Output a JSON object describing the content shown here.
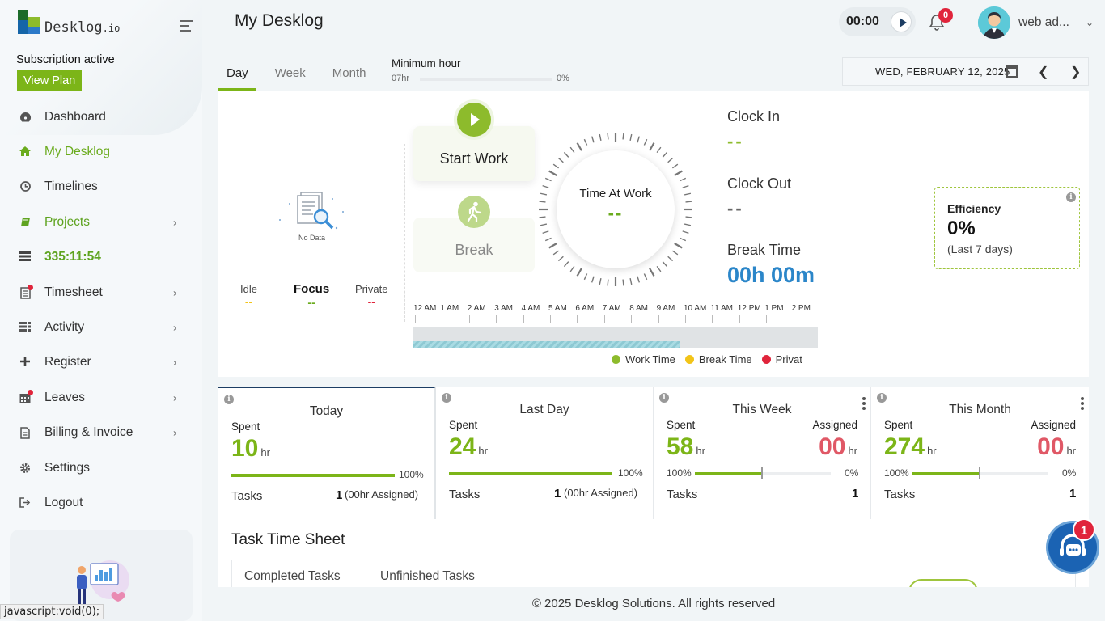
{
  "sidebar": {
    "logo_text": "Desklog",
    "logo_suffix": ".io",
    "subscription_text": "Subscription active",
    "view_plan_label": "View Plan",
    "items": [
      {
        "label": "Dashboard",
        "icon": "dashboard-icon"
      },
      {
        "label": "My Desklog",
        "icon": "home-icon"
      },
      {
        "label": "Timelines",
        "icon": "clock-icon"
      },
      {
        "label": "Projects",
        "icon": "book-icon"
      },
      {
        "label": "335:11:54",
        "icon": "timer-icon"
      },
      {
        "label": "Timesheet",
        "icon": "timesheet-icon"
      },
      {
        "label": "Activity",
        "icon": "grid-icon"
      },
      {
        "label": "Register",
        "icon": "plus-icon"
      },
      {
        "label": "Leaves",
        "icon": "calendar-icon"
      },
      {
        "label": "Billing & Invoice",
        "icon": "invoice-icon"
      },
      {
        "label": "Settings",
        "icon": "gear-icon"
      },
      {
        "label": "Logout",
        "icon": "logout-icon"
      }
    ]
  },
  "statusbar": "javascript:void(0);",
  "header": {
    "title": "My Desklog",
    "timer": "00:00",
    "notification_count": "0",
    "user_name": "web ad..."
  },
  "tabs": {
    "day": "Day",
    "week": "Week",
    "month": "Month",
    "min_hour_label": "Minimum hour",
    "min_hour_value": "07hr",
    "min_hour_pct": "0%"
  },
  "date": "WED, FEBRUARY 12, 2025",
  "panel": {
    "no_data": "No Data",
    "idle": "Idle",
    "idle_val": "--",
    "focus": "Focus",
    "focus_val": "--",
    "private": "Private",
    "private_val": "--",
    "start_work": "Start Work",
    "break": "Break",
    "time_at_work": "Time At Work",
    "time_at_work_val": "--",
    "clock_in": "Clock In",
    "clock_in_val": "--",
    "clock_out": "Clock Out",
    "clock_out_val": "--",
    "break_time": "Break Time",
    "break_time_val": "00h 00m",
    "efficiency_title": "Efficiency",
    "efficiency_val": "0%",
    "efficiency_note": "(Last 7 days)",
    "timeline_hours": [
      "12 AM",
      "1 AM",
      "2 AM",
      "3 AM",
      "4 AM",
      "5 AM",
      "6 AM",
      "7 AM",
      "8 AM",
      "9 AM",
      "10 AM",
      "11 AM",
      "12 PM",
      "1 PM",
      "2 PM"
    ],
    "legend": [
      {
        "label": "Work Time",
        "color": "#8dbb2c"
      },
      {
        "label": "Break Time",
        "color": "#f2c418"
      },
      {
        "label": "Privat",
        "color": "#e0243b"
      }
    ]
  },
  "cards": {
    "today": {
      "title": "Today",
      "spent_label": "Spent",
      "spent": "10",
      "unit": "hr",
      "pct": "100%",
      "tasks_label": "Tasks",
      "tasks": "1",
      "assigned_note": "(00hr Assigned)"
    },
    "last_day": {
      "title": "Last Day",
      "spent_label": "Spent",
      "spent": "24",
      "unit": "hr",
      "pct": "100%",
      "tasks_label": "Tasks",
      "tasks": "1",
      "assigned_note": "(00hr Assigned)"
    },
    "this_week": {
      "title": "This Week",
      "spent_label": "Spent",
      "assigned_label": "Assigned",
      "spent": "58",
      "assigned": "00",
      "unit": "hr",
      "pct_left": "100%",
      "pct_right": "0%",
      "tasks_label": "Tasks",
      "tasks": "1"
    },
    "this_month": {
      "title": "This Month",
      "spent_label": "Spent",
      "assigned_label": "Assigned",
      "spent": "274",
      "assigned": "00",
      "unit": "hr",
      "pct_left": "100%",
      "pct_right": "0%",
      "tasks_label": "Tasks",
      "tasks": "1"
    }
  },
  "task_sheet": {
    "title": "Task Time Sheet",
    "tab_completed": "Completed Tasks",
    "tab_unfinished": "Unfinished Tasks"
  },
  "chat_badge": "1",
  "footer": "© 2025 Desklog Solutions. All rights reserved"
}
